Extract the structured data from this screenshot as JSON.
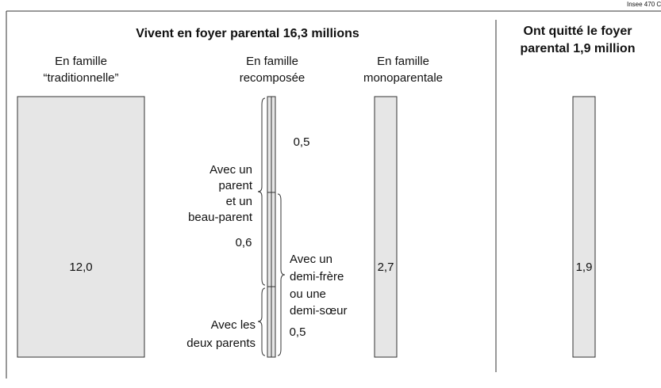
{
  "source": "Insee 470 C",
  "left": {
    "title": "Vivent en foyer  parental 16,3 millions",
    "columns": [
      {
        "label": [
          "En famille",
          "“traditionnelle”"
        ],
        "value": "12,0"
      },
      {
        "label": [
          "En famille",
          "recomposée"
        ],
        "groups": [
          {
            "label": [
              "Avec un",
              "parent",
              "et un",
              "beau-parent"
            ],
            "value": "0,6"
          },
          {
            "label": [
              "Avec un",
              "demi-frère",
              "ou une",
              "demi-sœur"
            ],
            "value": "0,5"
          },
          {
            "label": [
              "Avec les",
              "deux parents"
            ]
          }
        ],
        "segment_top_value": "0,5"
      },
      {
        "label": [
          "En famille",
          "monoparentale"
        ],
        "value": "2,7"
      }
    ]
  },
  "right": {
    "title": [
      "Ont quitté le foyer",
      "parental 1,9 million"
    ],
    "value": "1,9"
  }
}
